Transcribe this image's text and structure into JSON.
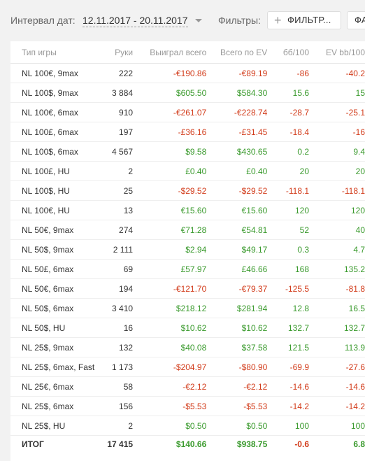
{
  "toolbar": {
    "date_label": "Интервал дат:",
    "date_range": "12.11.2017 - 20.11.2017",
    "filters_label": "Фильтры:",
    "filter_button": "ФИЛЬТР...",
    "second_button": "ФА"
  },
  "table": {
    "columns": [
      "Тип игры",
      "Руки",
      "Выиграл всего",
      "Всего по EV",
      "бб/100",
      "EV bb/100"
    ],
    "rows": [
      [
        "NL 100€, 9max",
        "222",
        "-€190.86",
        "-€89.19",
        "-86",
        "-40.2"
      ],
      [
        "NL 100$, 9max",
        "3 884",
        "$605.50",
        "$584.30",
        "15.6",
        "15"
      ],
      [
        "NL 100€, 6max",
        "910",
        "-€261.07",
        "-€228.74",
        "-28.7",
        "-25.1"
      ],
      [
        "NL 100£, 6max",
        "197",
        "-£36.16",
        "-£31.45",
        "-18.4",
        "-16"
      ],
      [
        "NL 100$, 6max",
        "4 567",
        "$9.58",
        "$430.65",
        "0.2",
        "9.4"
      ],
      [
        "NL 100£, HU",
        "2",
        "£0.40",
        "£0.40",
        "20",
        "20"
      ],
      [
        "NL 100$, HU",
        "25",
        "-$29.52",
        "-$29.52",
        "-118.1",
        "-118.1"
      ],
      [
        "NL 100€, HU",
        "13",
        "€15.60",
        "€15.60",
        "120",
        "120"
      ],
      [
        "NL 50€, 9max",
        "274",
        "€71.28",
        "€54.81",
        "52",
        "40"
      ],
      [
        "NL 50$, 9max",
        "2 111",
        "$2.94",
        "$49.17",
        "0.3",
        "4.7"
      ],
      [
        "NL 50£, 6max",
        "69",
        "£57.97",
        "£46.66",
        "168",
        "135.2"
      ],
      [
        "NL 50€, 6max",
        "194",
        "-€121.70",
        "-€79.37",
        "-125.5",
        "-81.8"
      ],
      [
        "NL 50$, 6max",
        "3 410",
        "$218.12",
        "$281.94",
        "12.8",
        "16.5"
      ],
      [
        "NL 50$, HU",
        "16",
        "$10.62",
        "$10.62",
        "132.7",
        "132.7"
      ],
      [
        "NL 25$, 9max",
        "132",
        "$40.08",
        "$37.58",
        "121.5",
        "113.9"
      ],
      [
        "NL 25$, 6max, Fast",
        "1 173",
        "-$204.97",
        "-$80.90",
        "-69.9",
        "-27.6"
      ],
      [
        "NL 25€, 6max",
        "58",
        "-€2.12",
        "-€2.12",
        "-14.6",
        "-14.6"
      ],
      [
        "NL 25$, 6max",
        "156",
        "-$5.53",
        "-$5.53",
        "-14.2",
        "-14.2"
      ],
      [
        "NL 25$, HU",
        "2",
        "$0.50",
        "$0.50",
        "100",
        "100"
      ]
    ],
    "total": [
      "ИТОГ",
      "17 415",
      "$140.66",
      "$938.75",
      "-0.6",
      "6.8"
    ]
  },
  "colors": {
    "positive": "#3a9a2d",
    "negative": "#d23b1a"
  }
}
